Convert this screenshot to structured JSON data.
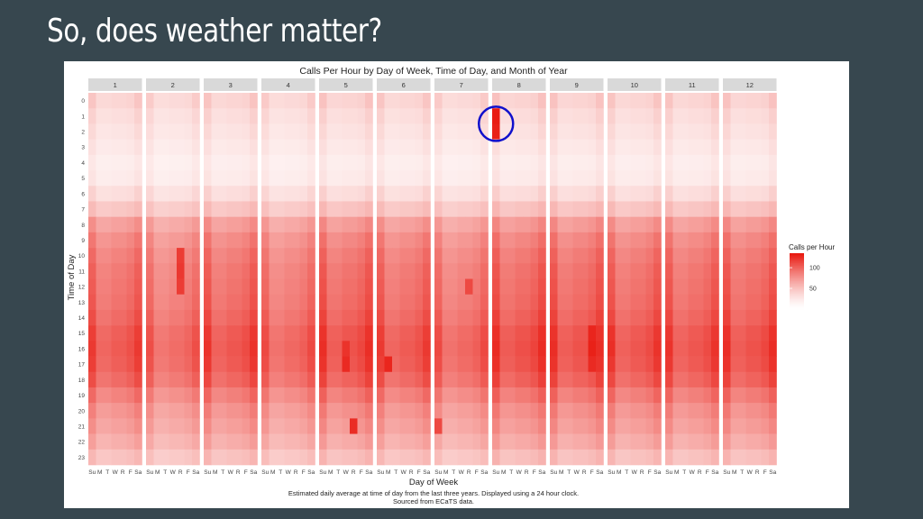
{
  "slide": {
    "title": "So, does weather matter?"
  },
  "chart_data": {
    "type": "heatmap",
    "title": "Calls Per Hour by Day of Week, Time of Day, and Month of Year",
    "xlabel": "Day of Week",
    "ylabel": "Time of Day",
    "caption_lines": [
      "Estimated daily average at time of day from the last three years. Displayed using a 24 hour clock.",
      "Sourced from ECaTS data."
    ],
    "facets": [
      "1",
      "2",
      "3",
      "4",
      "5",
      "6",
      "7",
      "8",
      "9",
      "10",
      "11",
      "12"
    ],
    "days": [
      "Su",
      "M",
      "T",
      "W",
      "R",
      "F",
      "Sa"
    ],
    "hours": [
      "0",
      "1",
      "2",
      "3",
      "4",
      "5",
      "6",
      "7",
      "8",
      "9",
      "10",
      "11",
      "12",
      "13",
      "14",
      "15",
      "16",
      "17",
      "18",
      "19",
      "20",
      "21",
      "22",
      "23"
    ],
    "hour_profile": [
      38,
      32,
      28,
      24,
      20,
      22,
      32,
      48,
      70,
      80,
      86,
      90,
      92,
      94,
      98,
      104,
      106,
      104,
      98,
      86,
      76,
      70,
      62,
      50
    ],
    "weekend_factor": [
      1.15,
      0.95,
      0.95,
      1.0,
      1.0,
      1.05,
      1.15
    ],
    "month_factor": [
      0.98,
      0.9,
      1.0,
      0.92,
      1.02,
      0.98,
      0.92,
      1.03,
      1.02,
      1.0,
      1.0,
      1.02
    ],
    "hotspots": [
      {
        "month": "2",
        "day": "R",
        "hour": "10",
        "value": 118
      },
      {
        "month": "2",
        "day": "R",
        "hour": "11",
        "value": 120
      },
      {
        "month": "2",
        "day": "R",
        "hour": "12",
        "value": 118
      },
      {
        "month": "5",
        "day": "W",
        "hour": "16",
        "value": 122
      },
      {
        "month": "5",
        "day": "W",
        "hour": "17",
        "value": 126
      },
      {
        "month": "5",
        "day": "R",
        "hour": "21",
        "value": 125
      },
      {
        "month": "6",
        "day": "M",
        "hour": "17",
        "value": 128
      },
      {
        "month": "7",
        "day": "Su",
        "hour": "21",
        "value": 112
      },
      {
        "month": "7",
        "day": "R",
        "hour": "12",
        "value": 112
      },
      {
        "month": "8",
        "day": "Su",
        "hour": "1",
        "value": 132
      },
      {
        "month": "8",
        "day": "Su",
        "hour": "2",
        "value": 130
      },
      {
        "month": "9",
        "day": "F",
        "hour": "15",
        "value": 128
      },
      {
        "month": "9",
        "day": "F",
        "hour": "16",
        "value": 130
      },
      {
        "month": "9",
        "day": "F",
        "hour": "17",
        "value": 126
      },
      {
        "month": "10",
        "day": "Su",
        "hour": "15",
        "value": 122
      },
      {
        "month": "10",
        "day": "Su",
        "hour": "16",
        "value": 124
      },
      {
        "month": "10",
        "day": "Su",
        "hour": "17",
        "value": 120
      }
    ],
    "highlight": {
      "month": "8",
      "day": "Su",
      "hour": "1"
    },
    "highlight_color": "#1010cc",
    "legend": {
      "title": "Calls per Hour",
      "ticks": [
        100,
        50
      ],
      "range": [
        0,
        135
      ],
      "placement": "right"
    },
    "color_low": "#ffffff",
    "color_high": "#e8150c",
    "strip_color": "#d9d9d9"
  }
}
